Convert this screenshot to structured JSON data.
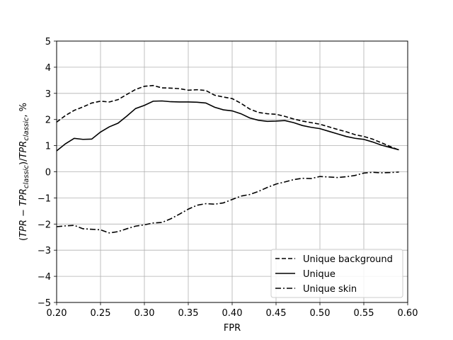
{
  "chart_data": {
    "type": "line",
    "xlabel": "FPR",
    "ylabel": "(TPR − TPR_classic)/TPR_classic, %",
    "xlim": [
      0.2,
      0.6
    ],
    "ylim": [
      -5,
      5
    ],
    "xticks": [
      "0.20",
      "0.25",
      "0.30",
      "0.35",
      "0.40",
      "0.45",
      "0.50",
      "0.55",
      "0.60"
    ],
    "xtick_values": [
      0.2,
      0.25,
      0.3,
      0.35,
      0.4,
      0.45,
      0.5,
      0.55,
      0.6
    ],
    "yticks": [
      "−5",
      "−4",
      "−3",
      "−2",
      "−1",
      "0",
      "1",
      "2",
      "3",
      "4",
      "5"
    ],
    "ytick_values": [
      -5,
      -4,
      -3,
      -2,
      -1,
      0,
      1,
      2,
      3,
      4,
      5
    ],
    "grid": true,
    "legend_position": "lower-right",
    "series": [
      {
        "name": "Unique background",
        "style": "dashed",
        "color": "#000000",
        "x": [
          0.2,
          0.21,
          0.22,
          0.23,
          0.24,
          0.25,
          0.26,
          0.27,
          0.28,
          0.29,
          0.3,
          0.31,
          0.32,
          0.33,
          0.34,
          0.35,
          0.36,
          0.37,
          0.38,
          0.39,
          0.4,
          0.41,
          0.42,
          0.43,
          0.44,
          0.45,
          0.46,
          0.47,
          0.48,
          0.49,
          0.5,
          0.51,
          0.52,
          0.53,
          0.54,
          0.55,
          0.56,
          0.57,
          0.58,
          0.59
        ],
        "y": [
          1.9,
          2.15,
          2.35,
          2.48,
          2.63,
          2.7,
          2.67,
          2.76,
          2.96,
          3.15,
          3.27,
          3.3,
          3.21,
          3.2,
          3.18,
          3.12,
          3.14,
          3.11,
          2.93,
          2.86,
          2.8,
          2.62,
          2.4,
          2.27,
          2.22,
          2.2,
          2.12,
          2.02,
          1.94,
          1.88,
          1.82,
          1.72,
          1.62,
          1.53,
          1.42,
          1.35,
          1.25,
          1.11,
          0.97,
          0.83
        ]
      },
      {
        "name": "Unique",
        "style": "solid",
        "color": "#000000",
        "x": [
          0.2,
          0.21,
          0.22,
          0.23,
          0.24,
          0.25,
          0.26,
          0.27,
          0.28,
          0.29,
          0.3,
          0.31,
          0.32,
          0.33,
          0.34,
          0.35,
          0.36,
          0.37,
          0.38,
          0.39,
          0.4,
          0.41,
          0.42,
          0.43,
          0.44,
          0.45,
          0.46,
          0.47,
          0.48,
          0.49,
          0.5,
          0.51,
          0.52,
          0.53,
          0.54,
          0.55,
          0.56,
          0.57,
          0.58,
          0.59
        ],
        "y": [
          0.8,
          1.07,
          1.28,
          1.24,
          1.25,
          1.52,
          1.72,
          1.86,
          2.13,
          2.42,
          2.54,
          2.7,
          2.71,
          2.68,
          2.67,
          2.67,
          2.66,
          2.63,
          2.47,
          2.37,
          2.33,
          2.22,
          2.06,
          1.97,
          1.93,
          1.94,
          1.96,
          1.88,
          1.77,
          1.7,
          1.65,
          1.55,
          1.45,
          1.35,
          1.28,
          1.24,
          1.14,
          1.02,
          0.93,
          0.84
        ]
      },
      {
        "name": "Unique skin",
        "style": "dashdot",
        "color": "#000000",
        "x": [
          0.2,
          0.21,
          0.22,
          0.23,
          0.24,
          0.25,
          0.26,
          0.27,
          0.28,
          0.29,
          0.3,
          0.31,
          0.32,
          0.33,
          0.34,
          0.35,
          0.36,
          0.37,
          0.38,
          0.39,
          0.4,
          0.41,
          0.42,
          0.43,
          0.44,
          0.45,
          0.46,
          0.47,
          0.48,
          0.49,
          0.5,
          0.51,
          0.52,
          0.53,
          0.54,
          0.55,
          0.56,
          0.57,
          0.58,
          0.59
        ],
        "y": [
          -2.1,
          -2.07,
          -2.05,
          -2.18,
          -2.2,
          -2.22,
          -2.34,
          -2.29,
          -2.18,
          -2.08,
          -2.03,
          -1.96,
          -1.94,
          -1.8,
          -1.62,
          -1.43,
          -1.28,
          -1.22,
          -1.24,
          -1.19,
          -1.06,
          -0.93,
          -0.87,
          -0.75,
          -0.6,
          -0.47,
          -0.39,
          -0.3,
          -0.25,
          -0.26,
          -0.18,
          -0.2,
          -0.22,
          -0.19,
          -0.14,
          -0.05,
          -0.02,
          -0.04,
          -0.03,
          -0.01
        ]
      }
    ]
  }
}
